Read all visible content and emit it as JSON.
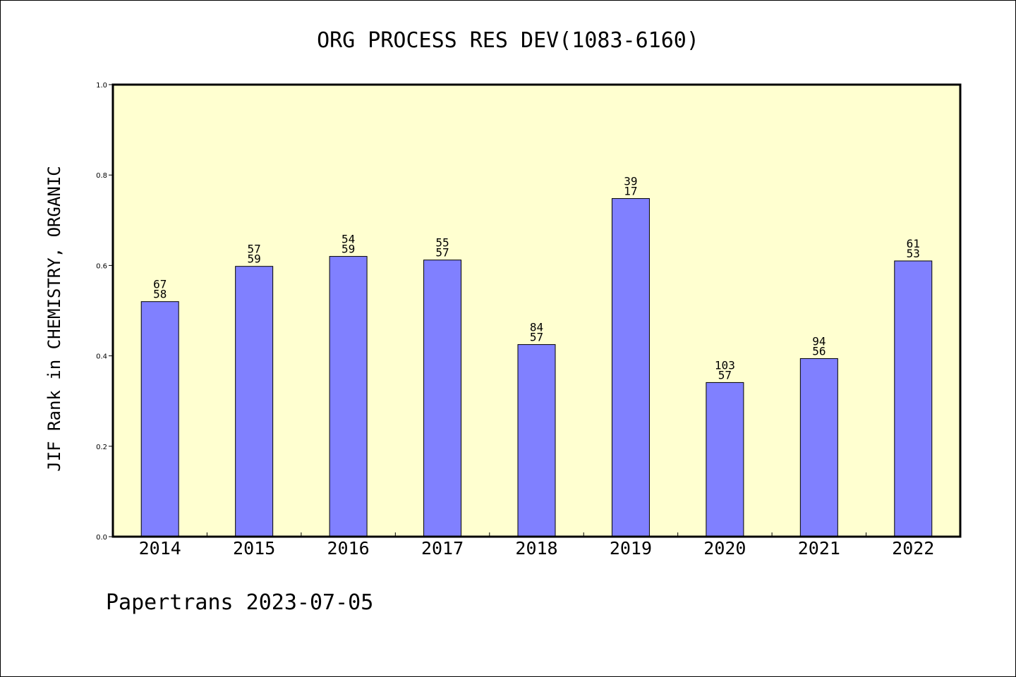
{
  "chart_data": {
    "type": "bar",
    "title": "ORG PROCESS RES DEV(1083-6160)",
    "ylabel": "JIF Rank in CHEMISTRY, ORGANIC",
    "xlabel": "",
    "categories": [
      "2014",
      "2015",
      "2016",
      "2017",
      "2018",
      "2019",
      "2020",
      "2021",
      "2022"
    ],
    "values": [
      0.52,
      0.598,
      0.62,
      0.612,
      0.425,
      0.748,
      0.341,
      0.394,
      0.61
    ],
    "labels": [
      [
        "67",
        "58"
      ],
      [
        "57",
        "59"
      ],
      [
        "54",
        "59"
      ],
      [
        "55",
        "57"
      ],
      [
        "84",
        "57"
      ],
      [
        "39",
        "17"
      ],
      [
        "103",
        "57"
      ],
      [
        "94",
        "56"
      ],
      [
        "61",
        "53"
      ]
    ],
    "ylim": [
      0,
      1.0
    ],
    "yticks": [
      "0.0",
      "0.2",
      "0.4",
      "0.6",
      "0.8",
      "1.0"
    ],
    "ytick_values": [
      0.0,
      0.2,
      0.4,
      0.6,
      0.8,
      1.0
    ],
    "grid": false,
    "colors": {
      "bar": "#8080ff",
      "bar_edge": "#000000",
      "plot_bg": "#ffffd0"
    }
  },
  "footer": "Papertrans 2023-07-05"
}
